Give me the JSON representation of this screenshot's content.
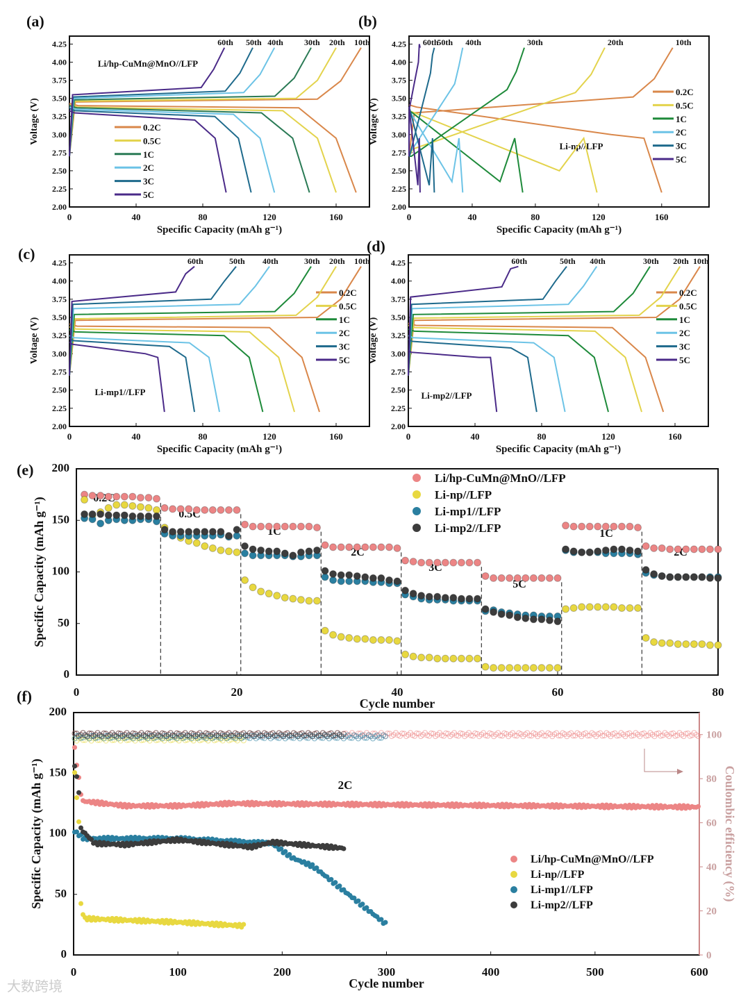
{
  "watermark": "大数跨境",
  "chart_data": [
    {
      "panel": "(a)",
      "type": "line",
      "title": "Li/hp-CuMn@MnO//LFP",
      "xlabel": "Specific Capacity (mAh g⁻¹)",
      "ylabel": "Voltage (V)",
      "xlim": [
        0,
        180
      ],
      "ylim": [
        2.0,
        4.36
      ],
      "xticks": [
        0,
        40,
        80,
        120,
        160
      ],
      "yticks": [
        2.0,
        2.25,
        2.5,
        2.75,
        3.0,
        3.25,
        3.5,
        3.75,
        4.0,
        4.25
      ],
      "legend": "center-left",
      "series": [
        {
          "name": "0.2C",
          "cycle": "10th",
          "color": "#d9874a",
          "charge_cap": 175,
          "discharge_cap": 172,
          "charge": [
            3.45,
            3.49
          ],
          "discharge": [
            3.4,
            3.37
          ]
        },
        {
          "name": "0.5C",
          "cycle": "20th",
          "color": "#e3d34c",
          "charge_cap": 160,
          "discharge_cap": 160,
          "charge": [
            3.46,
            3.5
          ],
          "discharge": [
            3.38,
            3.33
          ]
        },
        {
          "name": "1C",
          "cycle": "30th",
          "color": "#2a7a55",
          "charge_cap": 145,
          "discharge_cap": 144,
          "charge": [
            3.48,
            3.53
          ],
          "discharge": [
            3.37,
            3.3
          ]
        },
        {
          "name": "2C",
          "cycle": "40th",
          "color": "#6cc3e6",
          "charge_cap": 123,
          "discharge_cap": 123,
          "charge": [
            3.5,
            3.58
          ],
          "discharge": [
            3.35,
            3.28
          ]
        },
        {
          "name": "3C",
          "cycle": "50th",
          "color": "#1e6a8c",
          "charge_cap": 110,
          "discharge_cap": 109,
          "charge": [
            3.52,
            3.6
          ],
          "discharge": [
            3.33,
            3.25
          ]
        },
        {
          "name": "5C",
          "cycle": "60th",
          "color": "#4a2a88",
          "charge_cap": 93,
          "discharge_cap": 94,
          "charge": [
            3.55,
            3.65
          ],
          "discharge": [
            3.3,
            3.2
          ]
        }
      ]
    },
    {
      "panel": "(b)",
      "type": "line",
      "title": "Li-np//LFP",
      "xlabel": "Specific Capacity (mAh g⁻¹)",
      "ylabel": "Voltage (V)",
      "xlim": [
        0,
        190
      ],
      "ylim": [
        2.0,
        4.36
      ],
      "xticks": [
        0,
        40,
        80,
        120,
        160
      ],
      "yticks": [
        2.0,
        2.25,
        2.5,
        2.75,
        3.0,
        3.25,
        3.5,
        3.75,
        4.0,
        4.25
      ],
      "legend": "right",
      "series": [
        {
          "name": "0.2C",
          "cycle": "10th",
          "color": "#d9874a",
          "charge_cap": 167,
          "discharge_cap": 160,
          "charge": [
            3.3,
            3.52
          ],
          "discharge": [
            3.38,
            3.0
          ]
        },
        {
          "name": "0.5C",
          "cycle": "20th",
          "color": "#e3d34c",
          "charge_cap": 124,
          "discharge_cap": 119,
          "charge": [
            2.8,
            3.58
          ],
          "discharge": [
            3.3,
            2.5
          ]
        },
        {
          "name": "1C",
          "cycle": "30th",
          "color": "#1e8a3a",
          "charge_cap": 73,
          "discharge_cap": 72,
          "charge": [
            2.7,
            3.62
          ],
          "discharge": [
            3.3,
            2.35
          ]
        },
        {
          "name": "2C",
          "cycle": "40th",
          "color": "#6cc3e6",
          "charge_cap": 34,
          "discharge_cap": 34,
          "charge": [
            2.75,
            3.7
          ],
          "discharge": [
            3.3,
            2.35
          ]
        },
        {
          "name": "3C",
          "cycle": "50th",
          "color": "#1e6a8c",
          "charge_cap": 16,
          "discharge_cap": 16,
          "charge": [
            2.7,
            3.85
          ],
          "discharge": [
            3.35,
            2.3
          ]
        },
        {
          "name": "5C",
          "cycle": "60th",
          "color": "#4a2a88",
          "charge_cap": 7,
          "discharge_cap": 7,
          "charge": [
            3.35,
            4.0
          ],
          "discharge": [
            3.35,
            2.3
          ]
        }
      ]
    },
    {
      "panel": "(c)",
      "type": "line",
      "title": "Li-mp1//LFP",
      "xlabel": "Specific Capacity (mAh g⁻¹)",
      "ylabel": "Voltage (V)",
      "xlim": [
        0,
        180
      ],
      "ylim": [
        2.0,
        4.36
      ],
      "xticks": [
        0,
        40,
        80,
        120,
        160
      ],
      "yticks": [
        2.0,
        2.25,
        2.5,
        2.75,
        3.0,
        3.25,
        3.5,
        3.75,
        4.0,
        4.25
      ],
      "legend": "right",
      "series": [
        {
          "name": "0.2C",
          "cycle": "10th",
          "color": "#d9874a",
          "charge_cap": 175,
          "discharge_cap": 150,
          "charge": [
            3.46,
            3.5
          ],
          "discharge": [
            3.38,
            3.36
          ]
        },
        {
          "name": "0.5C",
          "cycle": "20th",
          "color": "#e3d34c",
          "charge_cap": 160,
          "discharge_cap": 135,
          "charge": [
            3.48,
            3.53
          ],
          "discharge": [
            3.34,
            3.3
          ]
        },
        {
          "name": "1C",
          "cycle": "30th",
          "color": "#1e8a3a",
          "charge_cap": 145,
          "discharge_cap": 116,
          "charge": [
            3.54,
            3.58
          ],
          "discharge": [
            3.3,
            3.25
          ]
        },
        {
          "name": "2C",
          "cycle": "40th",
          "color": "#6cc3e6",
          "charge_cap": 120,
          "discharge_cap": 90,
          "charge": [
            3.62,
            3.68
          ],
          "discharge": [
            3.22,
            3.15
          ]
        },
        {
          "name": "3C",
          "cycle": "50th",
          "color": "#1e6a8c",
          "charge_cap": 100,
          "discharge_cap": 75,
          "charge": [
            3.68,
            3.75
          ],
          "discharge": [
            3.18,
            3.1
          ]
        },
        {
          "name": "5C",
          "cycle": "60th",
          "color": "#4a2a88",
          "charge_cap": 75,
          "discharge_cap": 57,
          "charge": [
            3.72,
            3.85
          ],
          "discharge": [
            3.13,
            3.0
          ]
        }
      ]
    },
    {
      "panel": "(d)",
      "type": "line",
      "title": "Li-mp2//LFP",
      "xlabel": "Specific Capacity (mAh g⁻¹)",
      "ylabel": "Voltage (V)",
      "xlim": [
        0,
        180
      ],
      "ylim": [
        2.0,
        4.36
      ],
      "xticks": [
        0,
        40,
        80,
        120,
        160
      ],
      "yticks": [
        2.0,
        2.25,
        2.5,
        2.75,
        3.0,
        3.25,
        3.5,
        3.75,
        4.0,
        4.25
      ],
      "legend": "right",
      "series": [
        {
          "name": "0.2C",
          "cycle": "10th",
          "color": "#d9874a",
          "charge_cap": 175,
          "discharge_cap": 153,
          "charge": [
            3.46,
            3.5
          ],
          "discharge": [
            3.39,
            3.36
          ]
        },
        {
          "name": "0.5C",
          "cycle": "20th",
          "color": "#e3d34c",
          "charge_cap": 163,
          "discharge_cap": 140,
          "charge": [
            3.49,
            3.53
          ],
          "discharge": [
            3.36,
            3.31
          ]
        },
        {
          "name": "1C",
          "cycle": "30th",
          "color": "#1e8a3a",
          "charge_cap": 145,
          "discharge_cap": 120,
          "charge": [
            3.54,
            3.58
          ],
          "discharge": [
            3.31,
            3.25
          ]
        },
        {
          "name": "2C",
          "cycle": "40th",
          "color": "#6cc3e6",
          "charge_cap": 113,
          "discharge_cap": 94,
          "charge": [
            3.62,
            3.68
          ],
          "discharge": [
            3.22,
            3.15
          ]
        },
        {
          "name": "3C",
          "cycle": "50th",
          "color": "#1e6a8c",
          "charge_cap": 95,
          "discharge_cap": 77,
          "charge": [
            3.68,
            3.75
          ],
          "discharge": [
            3.17,
            3.08
          ]
        },
        {
          "name": "5C",
          "cycle": "60th",
          "color": "#4a2a88",
          "charge_cap": 66,
          "discharge_cap": 53,
          "charge": [
            3.78,
            3.92
          ],
          "discharge": [
            3.02,
            2.95
          ]
        }
      ]
    },
    {
      "panel": "(e)",
      "type": "scatter",
      "xlabel": "Cycle number",
      "ylabel": "Specific Capacity (mAh g⁻¹)",
      "xlim": [
        0,
        80
      ],
      "ylim": [
        0,
        200
      ],
      "xticks": [
        0,
        20,
        40,
        60,
        80
      ],
      "yticks": [
        0,
        50,
        100,
        150,
        200
      ],
      "legend": "top-right",
      "rate_labels": [
        {
          "text": "0.2C",
          "cycle": 5
        },
        {
          "text": "0.5C",
          "cycle": 15
        },
        {
          "text": "1C",
          "cycle": 25
        },
        {
          "text": "2C",
          "cycle": 35
        },
        {
          "text": "3C",
          "cycle": 45
        },
        {
          "text": "5C",
          "cycle": 55
        },
        {
          "text": "1C",
          "cycle": 65
        },
        {
          "text": "2C",
          "cycle": 75
        }
      ],
      "dividers": [
        10,
        20,
        30,
        40,
        50,
        60,
        70
      ],
      "series": [
        {
          "name": "Li/hp-CuMn@MnO//LFP",
          "color": "#ec8585",
          "values": [
            175,
            174,
            174,
            173,
            173,
            173,
            173,
            172,
            172,
            171,
            162,
            161,
            161,
            161,
            160,
            160,
            160,
            160,
            160,
            160,
            146,
            144,
            144,
            144,
            144,
            144,
            144,
            144,
            144,
            143,
            126,
            124,
            124,
            124,
            124,
            124,
            124,
            124,
            124,
            123,
            111,
            110,
            109,
            109,
            109,
            109,
            109,
            109,
            109,
            109,
            96,
            94,
            94,
            94,
            94,
            94,
            94,
            94,
            94,
            94,
            145,
            144,
            144,
            144,
            144,
            144,
            144,
            144,
            144,
            143,
            125,
            123,
            123,
            122,
            122,
            122,
            122,
            122,
            122,
            122
          ]
        },
        {
          "name": "Li-np//LFP",
          "color": "#e8d840",
          "values": [
            170,
            155,
            158,
            162,
            165,
            165,
            164,
            163,
            162,
            160,
            143,
            137,
            133,
            130,
            128,
            125,
            123,
            121,
            120,
            119,
            92,
            85,
            81,
            79,
            77,
            75,
            74,
            73,
            72,
            72,
            43,
            39,
            37,
            36,
            35,
            35,
            34,
            34,
            34,
            33,
            20,
            18,
            17,
            17,
            16,
            16,
            16,
            16,
            16,
            16,
            8,
            7,
            7,
            7,
            7,
            7,
            7,
            7,
            7,
            7,
            64,
            65,
            66,
            66,
            66,
            66,
            66,
            65,
            65,
            65,
            36,
            32,
            31,
            31,
            30,
            30,
            30,
            30,
            29,
            29
          ]
        },
        {
          "name": "Li-mp1//LFP",
          "color": "#2a7fa0",
          "values": [
            152,
            151,
            147,
            150,
            151,
            150,
            150,
            151,
            151,
            149,
            137,
            135,
            135,
            135,
            135,
            135,
            135,
            136,
            134,
            135,
            118,
            116,
            116,
            116,
            116,
            116,
            115,
            115,
            116,
            116,
            95,
            92,
            91,
            91,
            91,
            91,
            90,
            90,
            89,
            89,
            78,
            76,
            74,
            73,
            73,
            73,
            72,
            72,
            72,
            72,
            62,
            63,
            61,
            60,
            59,
            58,
            58,
            57,
            57,
            57,
            121,
            119,
            119,
            119,
            119,
            118,
            118,
            118,
            118,
            117,
            99,
            97,
            96,
            95,
            95,
            95,
            95,
            95,
            95,
            95
          ]
        },
        {
          "name": "Li-mp2//LFP",
          "color": "#3c3c3c",
          "values": [
            156,
            156,
            156,
            155,
            155,
            155,
            154,
            154,
            154,
            154,
            141,
            139,
            139,
            139,
            139,
            139,
            139,
            139,
            135,
            141,
            125,
            122,
            121,
            120,
            120,
            118,
            116,
            119,
            120,
            121,
            101,
            98,
            97,
            97,
            96,
            95,
            94,
            94,
            92,
            91,
            82,
            79,
            77,
            76,
            76,
            75,
            75,
            74,
            74,
            74,
            64,
            61,
            59,
            58,
            56,
            55,
            54,
            54,
            53,
            52,
            122,
            120,
            119,
            119,
            120,
            121,
            122,
            122,
            121,
            120,
            102,
            98,
            96,
            95,
            95,
            95,
            95,
            95,
            94,
            94
          ]
        }
      ]
    },
    {
      "panel": "(f)",
      "type": "scatter",
      "xlabel": "Cycle number",
      "ylabel": "Specific Capacity (mAh g⁻¹)",
      "y2label": "Coulombic efficiency (%)",
      "annotation": "2C",
      "xlim": [
        0,
        600
      ],
      "ylim": [
        0,
        200
      ],
      "y2lim": [
        0,
        110
      ],
      "xticks": [
        0,
        100,
        200,
        300,
        400,
        500,
        600
      ],
      "yticks": [
        0,
        50,
        100,
        150,
        200
      ],
      "y2ticks": [
        0,
        20,
        40,
        60,
        80,
        100
      ],
      "legend": "bottom-right",
      "series": [
        {
          "name": "Li/hp-CuMn@MnO//LFP",
          "color": "#ec8585",
          "cycles": 600,
          "capacity_keypoints": [
            [
              1,
              170
            ],
            [
              8,
              127
            ],
            [
              50,
              123
            ],
            [
              100,
              123
            ],
            [
              150,
              125
            ],
            [
              300,
              124
            ],
            [
              600,
              122
            ]
          ],
          "ce": 100
        },
        {
          "name": "Li-np//LFP",
          "color": "#e8d840",
          "cycles": 163,
          "capacity_keypoints": [
            [
              1,
              150
            ],
            [
              5,
              110
            ],
            [
              7,
              42
            ],
            [
              10,
              30
            ],
            [
              100,
              27
            ],
            [
              163,
              24
            ]
          ],
          "ce": 98
        },
        {
          "name": "Li-mp1//LFP",
          "color": "#2a7fa0",
          "cycles": 300,
          "capacity_keypoints": [
            [
              1,
              102
            ],
            [
              10,
              96
            ],
            [
              100,
              96
            ],
            [
              190,
              92
            ],
            [
              210,
              80
            ],
            [
              230,
              73
            ],
            [
              300,
              25
            ]
          ],
          "ce": 99
        },
        {
          "name": "Li-mp2//LFP",
          "color": "#3c3c3c",
          "cycles": 260,
          "capacity_keypoints": [
            [
              1,
              157
            ],
            [
              5,
              135
            ],
            [
              7,
              104
            ],
            [
              20,
              92
            ],
            [
              50,
              91
            ],
            [
              100,
              95
            ],
            [
              170,
              89
            ],
            [
              190,
              93
            ],
            [
              260,
              88
            ]
          ],
          "ce": 100
        }
      ]
    }
  ]
}
